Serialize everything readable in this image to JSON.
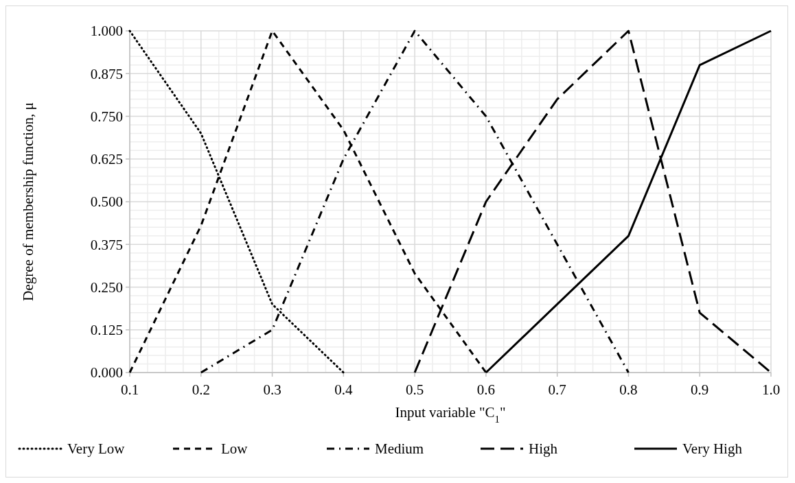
{
  "chart_data": {
    "type": "line",
    "xlabel": "Input variable \"C$_{1}$\"",
    "ylabel": "Degree of membership function, μ",
    "xlim": [
      0.1,
      1
    ],
    "xticks": [
      0.1,
      0.2,
      0.3,
      0.4,
      0.5,
      0.6,
      0.7,
      0.8,
      0.9,
      {
        "value": 1,
        "label": "1.0"
      }
    ],
    "ylim": [
      0,
      1
    ],
    "yticks": [
      {
        "value": 0,
        "label": "0.000"
      },
      {
        "value": 0.125,
        "label": "0.125"
      },
      {
        "value": 0.25,
        "label": "0.250"
      },
      {
        "value": 0.375,
        "label": "0.375"
      },
      {
        "value": 0.5,
        "label": "0.500"
      },
      {
        "value": 0.625,
        "label": "0.625"
      },
      {
        "value": 0.75,
        "label": "0.750"
      },
      {
        "value": 0.875,
        "label": "0.875"
      },
      {
        "value": 1,
        "label": "1.000"
      }
    ],
    "grid": true,
    "legend": "bottom",
    "marker": "none",
    "series": [
      {
        "name": "Very Low",
        "color": "#000000",
        "line_style": "dotted",
        "x": [
          0.1,
          0.2,
          0.3,
          0.4
        ],
        "values": [
          1,
          0.7,
          0.2,
          0
        ]
      },
      {
        "name": "Low",
        "color": "#000000",
        "line_style": "dashed",
        "x": [
          0.1,
          0.2,
          0.3,
          0.4,
          0.5,
          0.6
        ],
        "values": [
          0,
          0.43,
          1,
          0.71,
          0.29,
          0
        ]
      },
      {
        "name": "Medium",
        "color": "#000000",
        "line_style": "dashdot",
        "x": [
          0.2,
          0.3,
          0.4,
          0.5,
          0.6,
          0.7,
          0.8
        ],
        "values": [
          0,
          0.125,
          0.625,
          1,
          0.75,
          0.375,
          0
        ]
      },
      {
        "name": "High",
        "color": "#000000",
        "line_style": "longdash",
        "x": [
          0.5,
          0.6,
          0.7,
          0.8,
          0.9,
          1
        ],
        "values": [
          0,
          0.5,
          0.8,
          1,
          0.175,
          0
        ]
      },
      {
        "name": "Very High",
        "color": "#000000",
        "line_style": "solid",
        "x": [
          0.6,
          0.7,
          0.8,
          0.9,
          1
        ],
        "values": [
          0,
          0.2,
          0.4,
          0.9,
          1
        ]
      }
    ]
  }
}
